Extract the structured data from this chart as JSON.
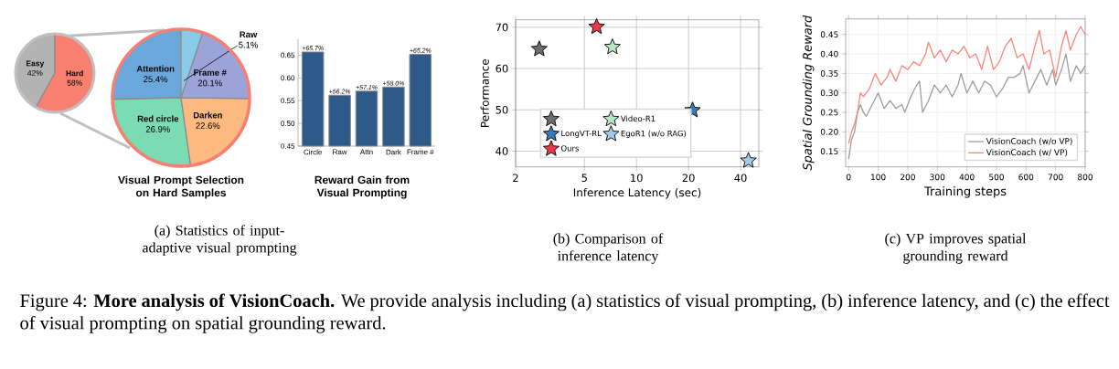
{
  "chart_data": [
    {
      "type": "pie",
      "categories": [
        "Easy",
        "Hard"
      ],
      "values": [
        42,
        58
      ],
      "colors": [
        "#b3b3b3",
        "#f98070"
      ],
      "value_labels": [
        "42%",
        "58%"
      ]
    },
    {
      "type": "pie",
      "title": "Visual Prompt Selection on Hard Samples",
      "categories": [
        "Attention",
        "Red circle",
        "Darken",
        "Frame #",
        "Raw"
      ],
      "values": [
        25.4,
        26.9,
        22.6,
        20.1,
        5.1
      ],
      "colors": [
        "#6aa7db",
        "#7bdbb2",
        "#fdba80",
        "#9ba3d9",
        "#88cbe8"
      ],
      "value_labels": [
        "25.4%",
        "26.9%",
        "22.6%",
        "20.1%",
        "5.1%"
      ],
      "annotations": [
        "(a) Statistics of input-adaptive visual prompting"
      ]
    },
    {
      "type": "bar",
      "title": "Reward Gain from Visual Prompting",
      "categories": [
        "Circle",
        "Raw",
        "Attn",
        "Dark",
        "Frame #"
      ],
      "values": [
        0.657,
        0.562,
        0.571,
        0.58,
        0.652
      ],
      "color": "#2e5a8a",
      "value_labels": [
        "+65.7%",
        "+56.2%",
        "+57.1%",
        "+58.0%",
        "+65.2%"
      ],
      "ylim": [
        0.45,
        0.685
      ],
      "yticks": [
        0.45,
        {
          "value": 0.5,
          "label": "0.50"
        },
        0.55,
        {
          "value": 0.6,
          "label": "0.60"
        },
        0.65
      ]
    },
    {
      "type": "scatter",
      "xlabel": "Inference Latency (sec)",
      "ylabel": "Performance",
      "log": "x",
      "grid": true,
      "legend": "bottom left",
      "marker": "star",
      "xlim": [
        2,
        51
      ],
      "ylim": [
        36.2,
        71.8
      ],
      "xticks": [
        2,
        5,
        10,
        20,
        40
      ],
      "yticks": [
        40,
        50,
        60,
        70
      ],
      "series": [
        {
          "color": "#6e6e6e",
          "x": [
            2.74
          ],
          "values": [
            64.7
          ]
        },
        {
          "name": "Video-R1",
          "color": "#b5e6c8",
          "x": [
            7.26
          ],
          "values": [
            65.2
          ]
        },
        {
          "name": "LongVT-RL",
          "color": "#3d78b5",
          "x": [
            21.1
          ],
          "values": [
            49.9
          ]
        },
        {
          "name": "EgoR1 (w/o RAG)",
          "color": "#a3cbe6",
          "x": [
            44.4
          ],
          "values": [
            37.7
          ]
        },
        {
          "name": "Ours",
          "color": "#e8394a",
          "x": [
            5.88
          ],
          "values": [
            70.1
          ]
        }
      ],
      "annotations": [
        "(b) Comparison of inference latency"
      ]
    },
    {
      "type": "line",
      "xlabel": "Training steps",
      "ylabel": "Spatial Grounding Reward",
      "grid": true,
      "legend": "bottom right",
      "xlim": [
        -10,
        800
      ],
      "ylim": [
        0.11,
        0.49
      ],
      "xticks": [
        0,
        100,
        200,
        300,
        400,
        500,
        600,
        700,
        800
      ],
      "yticks": [
        0.15,
        {
          "value": 0.2,
          "label": "0.20"
        },
        0.25,
        {
          "value": 0.3,
          "label": "0.30"
        },
        0.35,
        {
          "value": 0.4,
          "label": "0.40"
        },
        0.45
      ],
      "series": [
        {
          "name": "VisionCoach (w/o VP)",
          "color": "#9e9e9e",
          "x": [
            0,
            10,
            20,
            30,
            40,
            50,
            60,
            80,
            100,
            120,
            140,
            160,
            180,
            190,
            210,
            230,
            240,
            250,
            270,
            290,
            310,
            330,
            350,
            370,
            380,
            400,
            420,
            440,
            460,
            480,
            500,
            520,
            540,
            560,
            580,
            590,
            610,
            630,
            650,
            670,
            690,
            700,
            720,
            735,
            750,
            770,
            785,
            800
          ],
          "values": [
            0.13,
            0.18,
            0.2,
            0.25,
            0.27,
            0.25,
            0.24,
            0.27,
            0.3,
            0.26,
            0.28,
            0.26,
            0.27,
            0.25,
            0.29,
            0.32,
            0.33,
            0.25,
            0.28,
            0.32,
            0.3,
            0.32,
            0.29,
            0.32,
            0.35,
            0.3,
            0.33,
            0.3,
            0.33,
            0.32,
            0.29,
            0.31,
            0.34,
            0.34,
            0.35,
            0.37,
            0.3,
            0.33,
            0.36,
            0.32,
            0.36,
            0.32,
            0.36,
            0.4,
            0.33,
            0.37,
            0.35,
            0.37
          ]
        },
        {
          "name": "VisionCoach (w/ VP)",
          "color": "#f7877a",
          "x": [
            0,
            10,
            20,
            30,
            40,
            50,
            70,
            90,
            110,
            130,
            140,
            160,
            180,
            200,
            220,
            240,
            260,
            270,
            290,
            310,
            330,
            350,
            370,
            390,
            410,
            430,
            450,
            470,
            490,
            510,
            530,
            550,
            570,
            590,
            610,
            630,
            645,
            660,
            680,
            700,
            720,
            735,
            750,
            770,
            785,
            800
          ],
          "values": [
            0.17,
            0.2,
            0.22,
            0.25,
            0.3,
            0.29,
            0.31,
            0.35,
            0.32,
            0.34,
            0.36,
            0.33,
            0.37,
            0.36,
            0.38,
            0.37,
            0.4,
            0.43,
            0.39,
            0.41,
            0.38,
            0.41,
            0.4,
            0.42,
            0.39,
            0.4,
            0.36,
            0.42,
            0.36,
            0.38,
            0.42,
            0.44,
            0.39,
            0.4,
            0.36,
            0.42,
            0.46,
            0.4,
            0.41,
            0.34,
            0.42,
            0.46,
            0.41,
            0.45,
            0.47,
            0.45
          ]
        }
      ],
      "annotations": [
        "(c) VP improves spatial grounding reward",
        "Figure 4: **More analysis of VisionCoach.** We provide analysis including (a) statistics of visual prompting, (b) inference latency, and (c) the effect of visual prompting on spatial grounding reward."
      ]
    }
  ]
}
